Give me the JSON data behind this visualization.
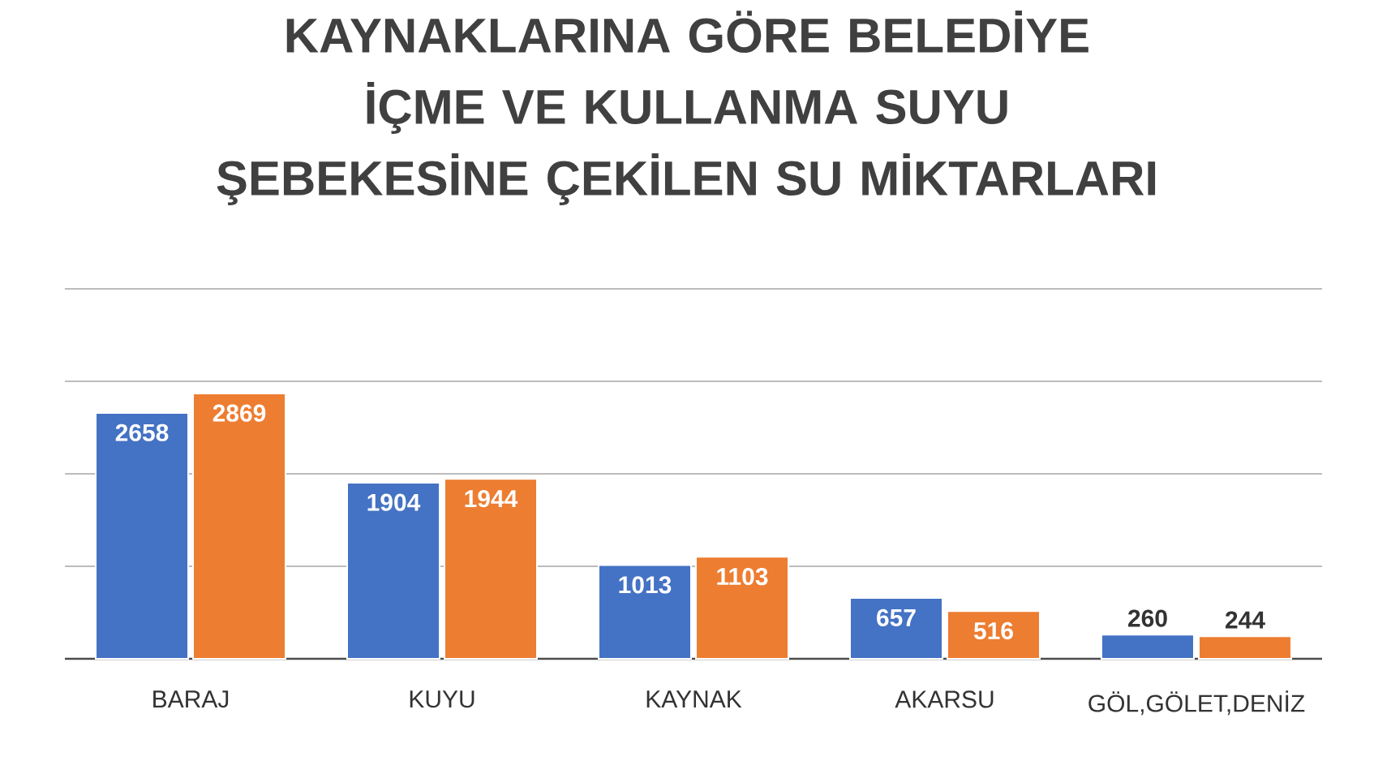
{
  "chart_data": {
    "type": "bar",
    "title": "KAYNAKLARINA GÖRE BELEDİYE İÇME VE KULLANMA SUYU ŞEBEKESİNE ÇEKİLEN SU MİKTARLARI",
    "categories": [
      "BARAJ",
      "KUYU",
      "KAYNAK",
      "AKARSU",
      "GÖL,GÖLET,DENİZ"
    ],
    "series": [
      {
        "color": "#4472c4",
        "values": [
          2658,
          1904,
          1013,
          657,
          260
        ]
      },
      {
        "color": "#ed7d31",
        "values": [
          2869,
          1944,
          1103,
          516,
          244
        ]
      }
    ],
    "ylim": [
      0,
      4000
    ],
    "yticks": [
      {
        "value": 0,
        "label": null
      },
      {
        "value": 1000,
        "label": null
      },
      {
        "value": 2000,
        "label": null
      },
      {
        "value": 3000,
        "label": null
      },
      {
        "value": 4000,
        "label": null
      }
    ],
    "tick_labels": "x",
    "grid": "y",
    "data_labels": true
  }
}
